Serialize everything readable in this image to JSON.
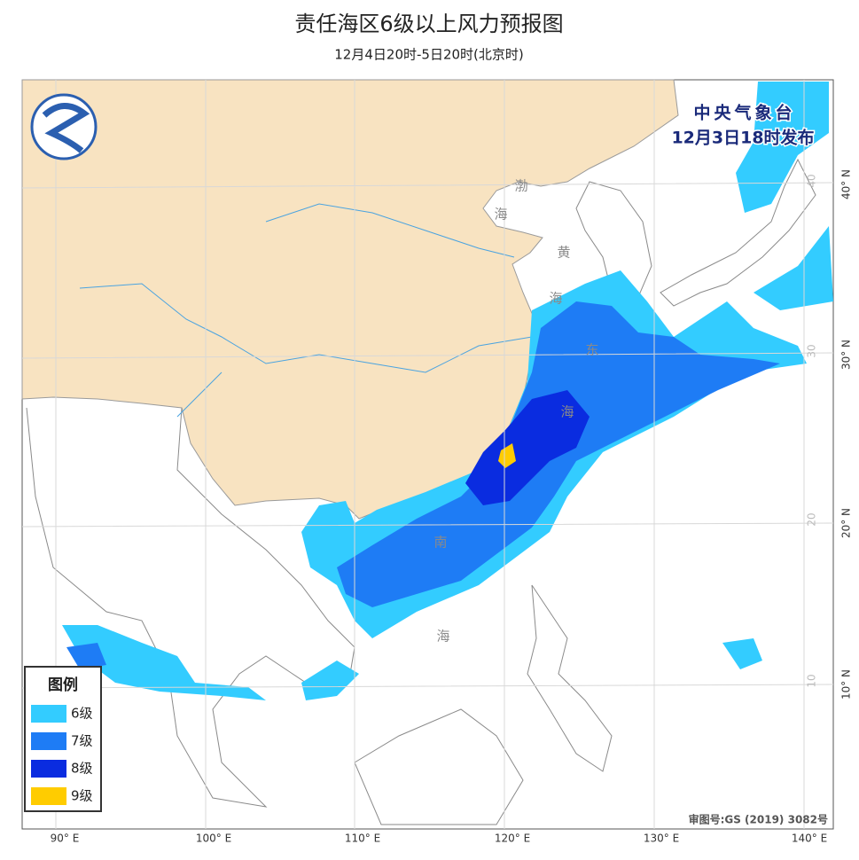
{
  "header": {
    "title": "责任海区6级以上风力预报图",
    "subtitle": "12月4日20时-5日20时(北京时)"
  },
  "issuer": {
    "agency": "中央气象台",
    "issued": "12月3日18时发布"
  },
  "legend": {
    "title": "图例",
    "items": [
      "6级",
      "7级",
      "8级",
      "9级"
    ]
  },
  "map": {
    "sea_labels": [
      "渤",
      "海",
      "黄",
      "海",
      "东",
      "海",
      "南",
      "海"
    ],
    "lon_labels": [
      "90° E",
      "100° E",
      "110° E",
      "120° E",
      "130° E",
      "140° E"
    ],
    "lat_labels": [
      "40° N",
      "30° N",
      "20° N",
      "10° N"
    ],
    "grid_labels": [
      "40",
      "30",
      "20",
      "10"
    ]
  },
  "footer": {
    "approval": "审图号:GS (2019) 3082号"
  }
}
